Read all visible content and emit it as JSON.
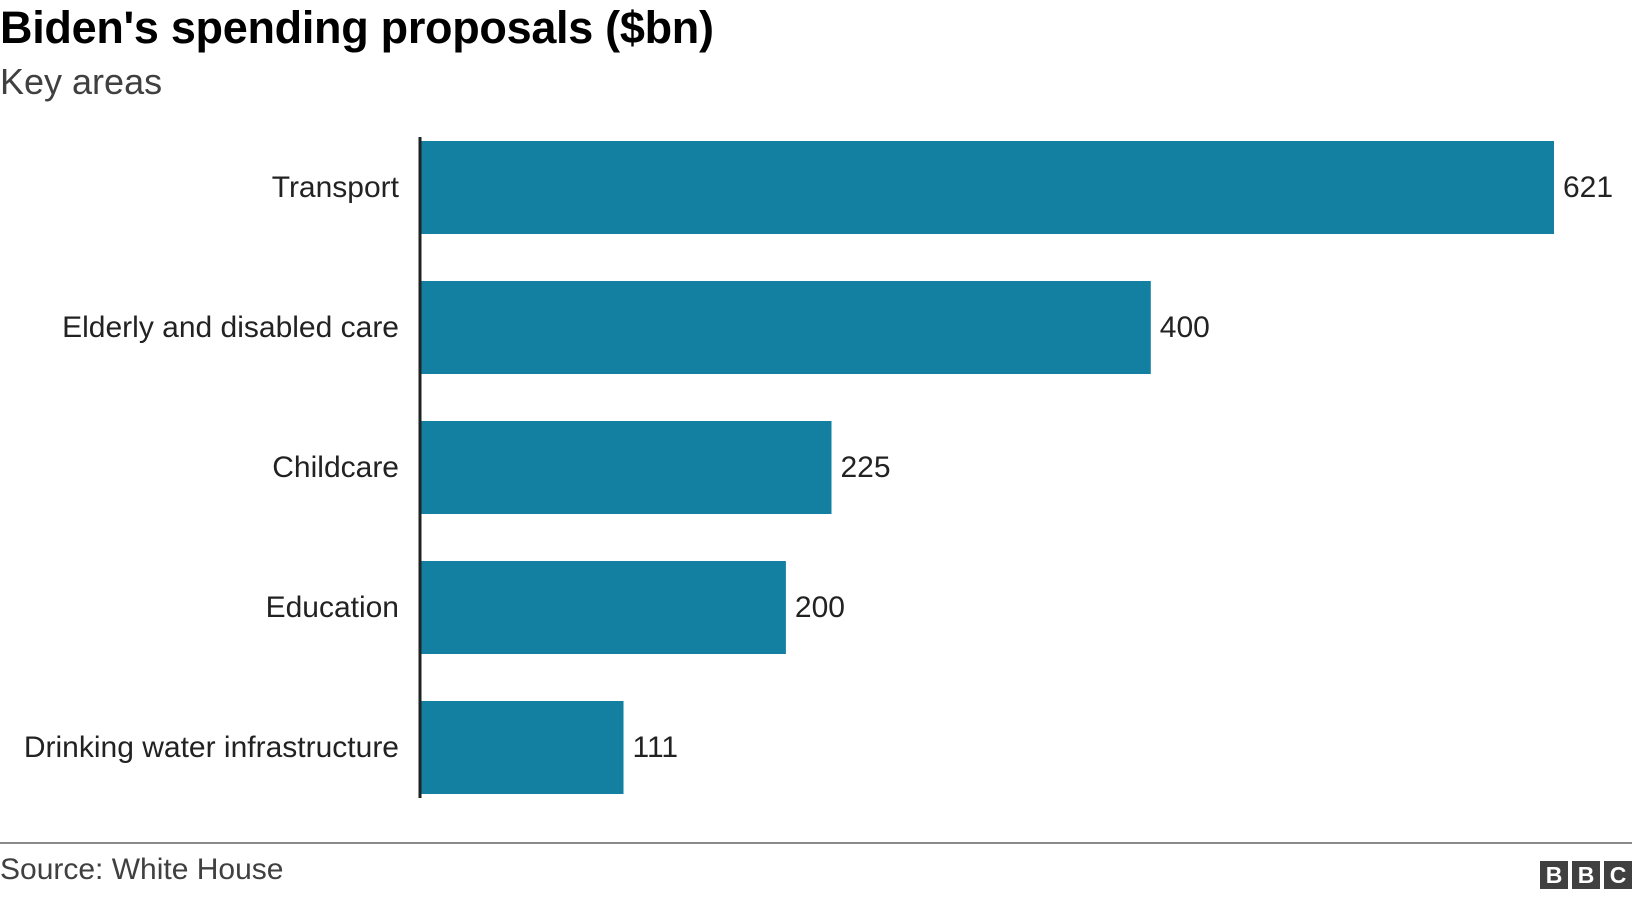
{
  "chart_data": {
    "type": "bar",
    "orientation": "horizontal",
    "title": "Biden's spending proposals ($bn)",
    "subtitle": "Key areas",
    "categories": [
      "Transport",
      "Elderly and disabled care",
      "Childcare",
      "Education",
      "Drinking water infrastructure"
    ],
    "values": [
      621,
      400,
      225,
      200,
      111
    ],
    "xlim": [
      0,
      621
    ],
    "grid": false,
    "legend": "none",
    "bar_color": "#1380a1",
    "axis_color": "#222222"
  },
  "footer": {
    "source": "Source: White House",
    "logo": [
      "B",
      "B",
      "C"
    ]
  }
}
